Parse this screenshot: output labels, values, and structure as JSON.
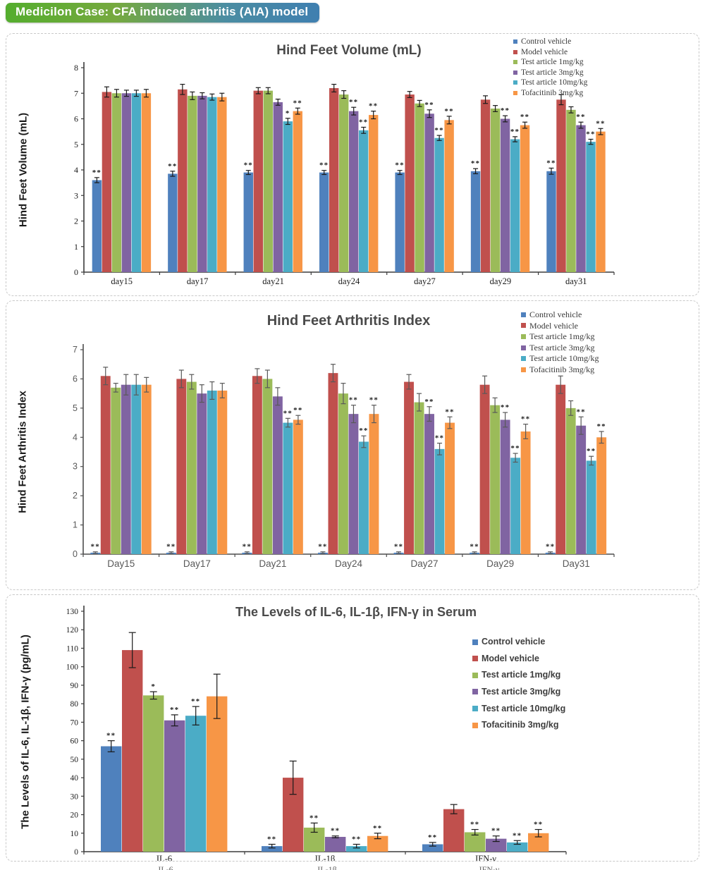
{
  "header": {
    "title": "Medicilon Case: CFA induced arthritis (AIA) model"
  },
  "cutoff_labels": [
    "IL-6",
    "IL-1β",
    "IFN-γ"
  ],
  "chart_data": [
    {
      "type": "bar",
      "title": "Hind Feet Volume (mL)",
      "ylabel": "Hind Feet Volume (mL)",
      "ylim": [
        0,
        8
      ],
      "ytick_step": 1,
      "grid": false,
      "legend_position": "top-right",
      "categories": [
        "day15",
        "day17",
        "day21",
        "day24",
        "day27",
        "day29",
        "day31"
      ],
      "series": [
        {
          "name": "Control vehicle",
          "color": "#4F81BD",
          "values": [
            3.6,
            3.85,
            3.9,
            3.9,
            3.9,
            3.95,
            3.95
          ],
          "errors": [
            0.1,
            0.1,
            0.08,
            0.08,
            0.08,
            0.1,
            0.12
          ],
          "sig": [
            "**",
            "**",
            "**",
            "**",
            "**",
            "**",
            "**"
          ]
        },
        {
          "name": "Model vehicle",
          "color": "#C0504D",
          "values": [
            7.05,
            7.15,
            7.1,
            7.2,
            6.95,
            6.75,
            6.75
          ],
          "errors": [
            0.2,
            0.2,
            0.12,
            0.15,
            0.12,
            0.15,
            0.2
          ],
          "sig": [
            null,
            null,
            null,
            null,
            null,
            null,
            null
          ]
        },
        {
          "name": "Test article 1mg/kg",
          "color": "#9BBB59",
          "values": [
            7.0,
            6.9,
            7.1,
            6.95,
            6.6,
            6.4,
            6.35
          ],
          "errors": [
            0.15,
            0.15,
            0.12,
            0.15,
            0.12,
            0.12,
            0.12
          ],
          "sig": [
            null,
            null,
            null,
            null,
            null,
            null,
            null
          ]
        },
        {
          "name": "Test article 3mg/kg",
          "color": "#8064A2",
          "values": [
            7.0,
            6.9,
            6.65,
            6.3,
            6.2,
            6.0,
            5.75
          ],
          "errors": [
            0.12,
            0.12,
            0.12,
            0.15,
            0.15,
            0.12,
            0.12
          ],
          "sig": [
            null,
            null,
            null,
            "**",
            "**",
            "**",
            "**"
          ]
        },
        {
          "name": "Test article 10mg/kg",
          "color": "#4BACC6",
          "values": [
            7.0,
            6.85,
            5.9,
            5.55,
            5.25,
            5.2,
            5.1
          ],
          "errors": [
            0.12,
            0.12,
            0.12,
            0.12,
            0.1,
            0.1,
            0.1
          ],
          "sig": [
            null,
            null,
            "*",
            "**",
            "**",
            "**",
            "**"
          ]
        },
        {
          "name": "Tofacitinib 3mg/kg",
          "color": "#F79646",
          "values": [
            7.0,
            6.85,
            6.3,
            6.15,
            5.95,
            5.75,
            5.5
          ],
          "errors": [
            0.15,
            0.15,
            0.12,
            0.15,
            0.15,
            0.12,
            0.12
          ],
          "sig": [
            null,
            null,
            "**",
            "**",
            "**",
            "**",
            "**"
          ]
        }
      ]
    },
    {
      "type": "bar",
      "title": "Hind Feet Arthritis Index",
      "ylabel": "Hind Feet Arthritis Index",
      "ylim": [
        0,
        7
      ],
      "ytick_step": 1,
      "grid": false,
      "legend_position": "top-right",
      "categories": [
        "Day15",
        "Day17",
        "Day21",
        "Day24",
        "Day27",
        "Day29",
        "Day31"
      ],
      "series": [
        {
          "name": "Control vehicle",
          "color": "#4F81BD",
          "values": [
            0.05,
            0.05,
            0.05,
            0.05,
            0.05,
            0.05,
            0.05
          ],
          "errors": [
            0.03,
            0.03,
            0.03,
            0.03,
            0.03,
            0.03,
            0.03
          ],
          "sig": [
            "**",
            "**",
            "**",
            "**",
            "**",
            "**",
            "**"
          ]
        },
        {
          "name": "Model vehicle",
          "color": "#C0504D",
          "values": [
            6.1,
            6.0,
            6.1,
            6.2,
            5.9,
            5.8,
            5.8
          ],
          "errors": [
            0.3,
            0.3,
            0.25,
            0.3,
            0.25,
            0.3,
            0.3
          ],
          "sig": [
            null,
            null,
            null,
            null,
            null,
            null,
            null
          ]
        },
        {
          "name": "Test article 1mg/kg",
          "color": "#9BBB59",
          "values": [
            5.7,
            5.9,
            6.0,
            5.5,
            5.2,
            5.1,
            5.0
          ],
          "errors": [
            0.15,
            0.25,
            0.3,
            0.35,
            0.3,
            0.25,
            0.25
          ],
          "sig": [
            null,
            null,
            null,
            null,
            null,
            null,
            null
          ]
        },
        {
          "name": "Test article 3mg/kg",
          "color": "#8064A2",
          "values": [
            5.8,
            5.5,
            5.4,
            4.8,
            4.8,
            4.6,
            4.4
          ],
          "errors": [
            0.35,
            0.3,
            0.3,
            0.3,
            0.25,
            0.25,
            0.3
          ],
          "sig": [
            null,
            null,
            null,
            "**",
            "**",
            "**",
            "**"
          ]
        },
        {
          "name": "Test article 10mg/kg",
          "color": "#4BACC6",
          "values": [
            5.8,
            5.6,
            4.5,
            3.85,
            3.6,
            3.3,
            3.2
          ],
          "errors": [
            0.35,
            0.3,
            0.15,
            0.2,
            0.2,
            0.15,
            0.15
          ],
          "sig": [
            null,
            null,
            "**",
            "**",
            "**",
            "**",
            "**"
          ]
        },
        {
          "name": "Tofacitinib 3mg/kg",
          "color": "#F79646",
          "values": [
            5.8,
            5.6,
            4.6,
            4.8,
            4.5,
            4.2,
            4.0
          ],
          "errors": [
            0.25,
            0.25,
            0.15,
            0.3,
            0.2,
            0.25,
            0.2
          ],
          "sig": [
            null,
            null,
            "**",
            "**",
            "**",
            "**",
            "**"
          ]
        }
      ]
    },
    {
      "type": "bar",
      "title": "The Levels of IL-6, IL-1β, IFN-γ in Serum",
      "ylabel": "The Levels of IL-6, IL-1β, IFN-γ  (pg/mL)",
      "ylim": [
        0,
        130
      ],
      "ytick_step": 10,
      "grid": false,
      "legend_position": "right",
      "categories": [
        "IL-6",
        "IL-1β",
        "IFN-γ"
      ],
      "series": [
        {
          "name": "Control vehicle",
          "color": "#4F81BD",
          "values": [
            57,
            3,
            4
          ],
          "errors": [
            3,
            1,
            1
          ],
          "sig": [
            "**",
            "**",
            "**"
          ]
        },
        {
          "name": "Model vehicle",
          "color": "#C0504D",
          "values": [
            109,
            40,
            23
          ],
          "errors": [
            9.5,
            9,
            2.5
          ],
          "sig": [
            null,
            null,
            null
          ]
        },
        {
          "name": "Test article 1mg/kg",
          "color": "#9BBB59",
          "values": [
            84.5,
            13,
            10.5
          ],
          "errors": [
            2,
            2.5,
            1.5
          ],
          "sig": [
            "*",
            "**",
            "**"
          ]
        },
        {
          "name": "Test article 3mg/kg",
          "color": "#8064A2",
          "values": [
            71,
            8,
            7
          ],
          "errors": [
            3,
            0.5,
            1.5
          ],
          "sig": [
            "**",
            "**",
            "**"
          ]
        },
        {
          "name": "Test article 10mg/kg",
          "color": "#4BACC6",
          "values": [
            73.5,
            3,
            5
          ],
          "errors": [
            5,
            1,
            1
          ],
          "sig": [
            "**",
            "**",
            "**"
          ]
        },
        {
          "name": "Tofacitinib 3mg/kg",
          "color": "#F79646",
          "values": [
            84,
            8.5,
            10
          ],
          "errors": [
            12,
            1.5,
            2
          ],
          "sig": [
            null,
            "**",
            "**"
          ]
        }
      ]
    }
  ]
}
